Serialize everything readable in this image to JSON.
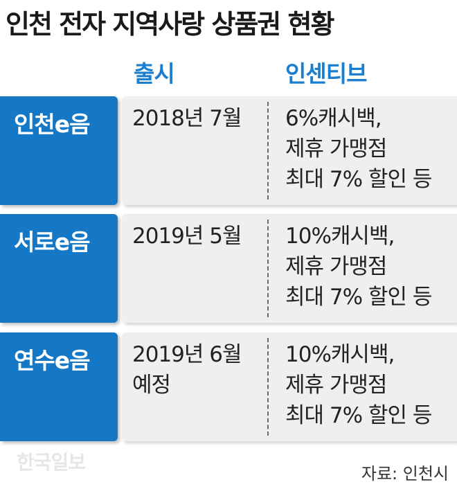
{
  "title": "인천 전자 지역사랑 상품권 현황",
  "headers": {
    "launch": "출시",
    "incentive": "인센티브"
  },
  "rows": [
    {
      "name": "인천e음",
      "launch": [
        "2018년 7월"
      ],
      "incentive": [
        "6%캐시백,",
        "제휴 가맹점",
        "최대 7% 할인 등"
      ]
    },
    {
      "name": "서로e음",
      "launch": [
        "2019년 5월"
      ],
      "incentive": [
        "10%캐시백,",
        "제휴 가맹점",
        "최대 7% 할인 등"
      ]
    },
    {
      "name": "연수e음",
      "launch": [
        "2019년 6월",
        "예정"
      ],
      "incentive": [
        "10%캐시백,",
        "제휴 가맹점",
        "최대 7% 할인 등"
      ]
    }
  ],
  "watermark": "한국일보",
  "source": "자료: 인천시",
  "colors": {
    "accent": "#1478c6",
    "header_text": "#1a7fd0",
    "cell_bg": "#efefef"
  }
}
